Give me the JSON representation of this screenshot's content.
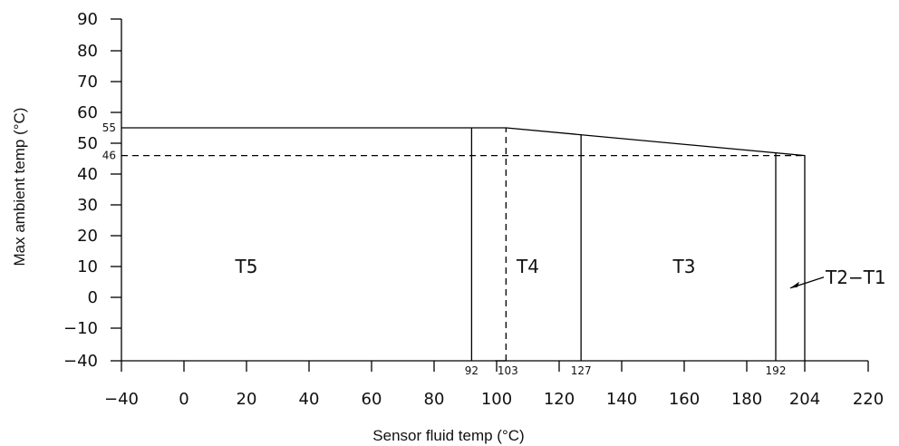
{
  "chart_data": {
    "type": "line",
    "xlabel": "Sensor fluid temp (°C)",
    "ylabel": "Max ambient temp (°C)",
    "xlim": [
      -40,
      220
    ],
    "ylim": [
      -40,
      90
    ],
    "x_ticks": [
      -40,
      0,
      20,
      40,
      60,
      80,
      100,
      120,
      140,
      160,
      180,
      204,
      220
    ],
    "x_tick_labels": [
      "−40",
      "0",
      "20",
      "40",
      "60",
      "80",
      "100",
      "120",
      "140",
      "160",
      "180",
      "204",
      "220"
    ],
    "y_ticks": [
      -40,
      -10,
      0,
      10,
      20,
      30,
      40,
      50,
      60,
      70,
      80,
      90
    ],
    "y_tick_labels": [
      "−40",
      "−10",
      "0",
      "10",
      "20",
      "30",
      "40",
      "50",
      "60",
      "70",
      "80",
      "90"
    ],
    "boundary": {
      "x": [
        -40,
        103,
        204,
        204
      ],
      "y": [
        55,
        55,
        46,
        -40
      ]
    },
    "reference_lines": [
      {
        "axis": "y",
        "value": 46,
        "label": "46",
        "style": "dashed",
        "x_range": [
          -40,
          204
        ]
      },
      {
        "axis": "x",
        "value": 103,
        "label": "103",
        "style": "dashed",
        "y_range": [
          -40,
          55
        ]
      }
    ],
    "boundary_labels": [
      {
        "axis": "y",
        "value": 55,
        "label": "55"
      }
    ],
    "dividers": [
      {
        "x": 92,
        "label": "92"
      },
      {
        "x": 127,
        "label": "127"
      },
      {
        "x": 192,
        "label": "192"
      }
    ],
    "regions": [
      {
        "label": "T5",
        "x": 20,
        "y": 10
      },
      {
        "label": "T4",
        "x": 110,
        "y": 10
      },
      {
        "label": "T3",
        "x": 160,
        "y": 10
      }
    ],
    "annotations": [
      {
        "text": "T2−T1",
        "target": {
          "x": 198,
          "y": 3
        }
      }
    ]
  }
}
